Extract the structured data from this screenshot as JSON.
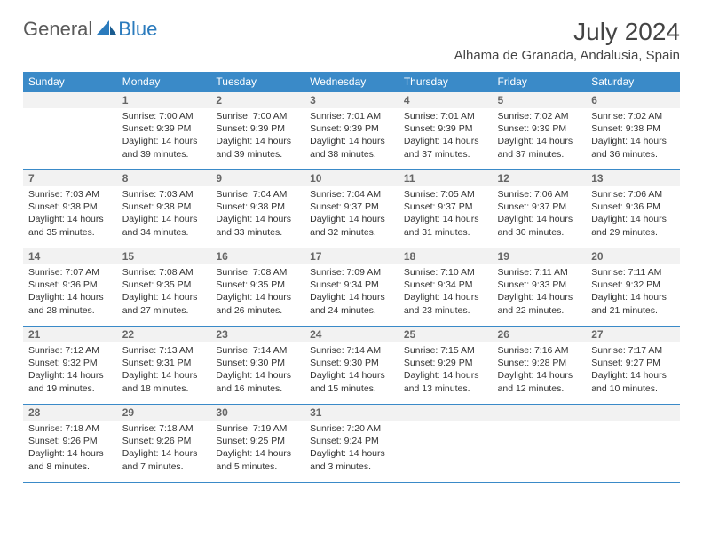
{
  "brand": {
    "general": "General",
    "blue": "Blue"
  },
  "title": "July 2024",
  "location": "Alhama de Granada, Andalusia, Spain",
  "colors": {
    "header_bg": "#3a8ac8",
    "header_text": "#ffffff",
    "cell_border": "#3a8ac8",
    "daynum_bg": "#f2f2f2",
    "daynum_text": "#666666",
    "body_text": "#333333",
    "brand_gray": "#5a5a5a",
    "brand_blue": "#2b7bbd",
    "page_bg": "#ffffff"
  },
  "fonts": {
    "base_family": "Arial",
    "title_size": 28,
    "location_size": 15,
    "header_size": 12,
    "daynum_size": 12,
    "body_size": 10.5
  },
  "calendar": {
    "type": "table",
    "day_labels": [
      "Sunday",
      "Monday",
      "Tuesday",
      "Wednesday",
      "Thursday",
      "Friday",
      "Saturday"
    ],
    "weeks": [
      [
        {
          "num": "",
          "sunrise": "",
          "sunset": "",
          "daylight": ""
        },
        {
          "num": "1",
          "sunrise": "Sunrise: 7:00 AM",
          "sunset": "Sunset: 9:39 PM",
          "daylight": "Daylight: 14 hours and 39 minutes."
        },
        {
          "num": "2",
          "sunrise": "Sunrise: 7:00 AM",
          "sunset": "Sunset: 9:39 PM",
          "daylight": "Daylight: 14 hours and 39 minutes."
        },
        {
          "num": "3",
          "sunrise": "Sunrise: 7:01 AM",
          "sunset": "Sunset: 9:39 PM",
          "daylight": "Daylight: 14 hours and 38 minutes."
        },
        {
          "num": "4",
          "sunrise": "Sunrise: 7:01 AM",
          "sunset": "Sunset: 9:39 PM",
          "daylight": "Daylight: 14 hours and 37 minutes."
        },
        {
          "num": "5",
          "sunrise": "Sunrise: 7:02 AM",
          "sunset": "Sunset: 9:39 PM",
          "daylight": "Daylight: 14 hours and 37 minutes."
        },
        {
          "num": "6",
          "sunrise": "Sunrise: 7:02 AM",
          "sunset": "Sunset: 9:38 PM",
          "daylight": "Daylight: 14 hours and 36 minutes."
        }
      ],
      [
        {
          "num": "7",
          "sunrise": "Sunrise: 7:03 AM",
          "sunset": "Sunset: 9:38 PM",
          "daylight": "Daylight: 14 hours and 35 minutes."
        },
        {
          "num": "8",
          "sunrise": "Sunrise: 7:03 AM",
          "sunset": "Sunset: 9:38 PM",
          "daylight": "Daylight: 14 hours and 34 minutes."
        },
        {
          "num": "9",
          "sunrise": "Sunrise: 7:04 AM",
          "sunset": "Sunset: 9:38 PM",
          "daylight": "Daylight: 14 hours and 33 minutes."
        },
        {
          "num": "10",
          "sunrise": "Sunrise: 7:04 AM",
          "sunset": "Sunset: 9:37 PM",
          "daylight": "Daylight: 14 hours and 32 minutes."
        },
        {
          "num": "11",
          "sunrise": "Sunrise: 7:05 AM",
          "sunset": "Sunset: 9:37 PM",
          "daylight": "Daylight: 14 hours and 31 minutes."
        },
        {
          "num": "12",
          "sunrise": "Sunrise: 7:06 AM",
          "sunset": "Sunset: 9:37 PM",
          "daylight": "Daylight: 14 hours and 30 minutes."
        },
        {
          "num": "13",
          "sunrise": "Sunrise: 7:06 AM",
          "sunset": "Sunset: 9:36 PM",
          "daylight": "Daylight: 14 hours and 29 minutes."
        }
      ],
      [
        {
          "num": "14",
          "sunrise": "Sunrise: 7:07 AM",
          "sunset": "Sunset: 9:36 PM",
          "daylight": "Daylight: 14 hours and 28 minutes."
        },
        {
          "num": "15",
          "sunrise": "Sunrise: 7:08 AM",
          "sunset": "Sunset: 9:35 PM",
          "daylight": "Daylight: 14 hours and 27 minutes."
        },
        {
          "num": "16",
          "sunrise": "Sunrise: 7:08 AM",
          "sunset": "Sunset: 9:35 PM",
          "daylight": "Daylight: 14 hours and 26 minutes."
        },
        {
          "num": "17",
          "sunrise": "Sunrise: 7:09 AM",
          "sunset": "Sunset: 9:34 PM",
          "daylight": "Daylight: 14 hours and 24 minutes."
        },
        {
          "num": "18",
          "sunrise": "Sunrise: 7:10 AM",
          "sunset": "Sunset: 9:34 PM",
          "daylight": "Daylight: 14 hours and 23 minutes."
        },
        {
          "num": "19",
          "sunrise": "Sunrise: 7:11 AM",
          "sunset": "Sunset: 9:33 PM",
          "daylight": "Daylight: 14 hours and 22 minutes."
        },
        {
          "num": "20",
          "sunrise": "Sunrise: 7:11 AM",
          "sunset": "Sunset: 9:32 PM",
          "daylight": "Daylight: 14 hours and 21 minutes."
        }
      ],
      [
        {
          "num": "21",
          "sunrise": "Sunrise: 7:12 AM",
          "sunset": "Sunset: 9:32 PM",
          "daylight": "Daylight: 14 hours and 19 minutes."
        },
        {
          "num": "22",
          "sunrise": "Sunrise: 7:13 AM",
          "sunset": "Sunset: 9:31 PM",
          "daylight": "Daylight: 14 hours and 18 minutes."
        },
        {
          "num": "23",
          "sunrise": "Sunrise: 7:14 AM",
          "sunset": "Sunset: 9:30 PM",
          "daylight": "Daylight: 14 hours and 16 minutes."
        },
        {
          "num": "24",
          "sunrise": "Sunrise: 7:14 AM",
          "sunset": "Sunset: 9:30 PM",
          "daylight": "Daylight: 14 hours and 15 minutes."
        },
        {
          "num": "25",
          "sunrise": "Sunrise: 7:15 AM",
          "sunset": "Sunset: 9:29 PM",
          "daylight": "Daylight: 14 hours and 13 minutes."
        },
        {
          "num": "26",
          "sunrise": "Sunrise: 7:16 AM",
          "sunset": "Sunset: 9:28 PM",
          "daylight": "Daylight: 14 hours and 12 minutes."
        },
        {
          "num": "27",
          "sunrise": "Sunrise: 7:17 AM",
          "sunset": "Sunset: 9:27 PM",
          "daylight": "Daylight: 14 hours and 10 minutes."
        }
      ],
      [
        {
          "num": "28",
          "sunrise": "Sunrise: 7:18 AM",
          "sunset": "Sunset: 9:26 PM",
          "daylight": "Daylight: 14 hours and 8 minutes."
        },
        {
          "num": "29",
          "sunrise": "Sunrise: 7:18 AM",
          "sunset": "Sunset: 9:26 PM",
          "daylight": "Daylight: 14 hours and 7 minutes."
        },
        {
          "num": "30",
          "sunrise": "Sunrise: 7:19 AM",
          "sunset": "Sunset: 9:25 PM",
          "daylight": "Daylight: 14 hours and 5 minutes."
        },
        {
          "num": "31",
          "sunrise": "Sunrise: 7:20 AM",
          "sunset": "Sunset: 9:24 PM",
          "daylight": "Daylight: 14 hours and 3 minutes."
        },
        {
          "num": "",
          "sunrise": "",
          "sunset": "",
          "daylight": ""
        },
        {
          "num": "",
          "sunrise": "",
          "sunset": "",
          "daylight": ""
        },
        {
          "num": "",
          "sunrise": "",
          "sunset": "",
          "daylight": ""
        }
      ]
    ]
  }
}
